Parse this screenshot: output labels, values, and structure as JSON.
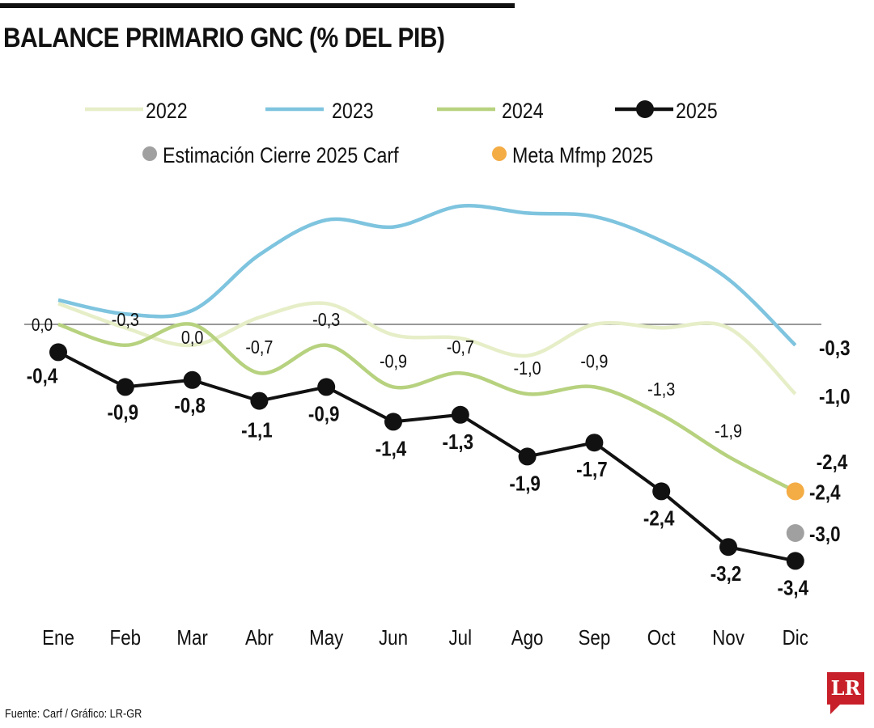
{
  "chart_data": {
    "type": "line",
    "title": "BALANCE PRIMARIO GNC (% DEL PIB)",
    "xlabel": "",
    "ylabel": "",
    "categories": [
      "Ene",
      "Feb",
      "Mar",
      "Abr",
      "May",
      "Jun",
      "Jul",
      "Ago",
      "Sep",
      "Oct",
      "Nov",
      "Dic"
    ],
    "ylim": [
      -3.8,
      1.9
    ],
    "grid": false,
    "zero_label": "0,0",
    "legend_placement": "top",
    "series": [
      {
        "name": "2022",
        "color": "#e6eec8",
        "values": [
          0.3,
          -0.05,
          -0.3,
          0.1,
          0.3,
          -0.15,
          -0.2,
          -0.45,
          0.0,
          -0.05,
          -0.05,
          -1.0
        ],
        "labels": [
          "",
          "",
          "",
          "",
          "",
          "",
          "",
          "",
          "",
          "",
          "",
          "-1,0"
        ]
      },
      {
        "name": "2023",
        "color": "#7ec4df",
        "values": [
          0.35,
          0.15,
          0.2,
          1.0,
          1.5,
          1.4,
          1.7,
          1.6,
          1.55,
          1.2,
          0.65,
          -0.3
        ],
        "labels": [
          "",
          "",
          "",
          "",
          "",
          "",
          "",
          "",
          "",
          "",
          "",
          "-0,3"
        ]
      },
      {
        "name": "2024",
        "color": "#b7d27f",
        "values": [
          0.0,
          -0.3,
          0.0,
          -0.7,
          -0.3,
          -0.9,
          -0.7,
          -1.0,
          -0.9,
          -1.3,
          -1.9,
          -2.4
        ],
        "labels": [
          "",
          "-0,3",
          "0,0",
          "-0,7",
          "-0,3",
          "-0,9",
          "-0,7",
          "-1,0",
          "-0,9",
          "-1,3",
          "-1,9",
          "-2,4"
        ]
      },
      {
        "name": "2025",
        "color": "#111111",
        "values": [
          -0.4,
          -0.9,
          -0.8,
          -1.1,
          -0.9,
          -1.4,
          -1.3,
          -1.9,
          -1.7,
          -2.4,
          -3.2,
          -3.4
        ],
        "labels": [
          "-0,4",
          "-0,9",
          "-0,8",
          "-1,1",
          "-0,9",
          "-1,4",
          "-1,3",
          "-1,9",
          "-1,7",
          "-2,4",
          "-3,2",
          "-3,4"
        ]
      }
    ],
    "points": [
      {
        "name": "Estimación Cierre 2025 Carf",
        "color": "#a0a0a0",
        "category": "Dic",
        "value": -3.0,
        "label": "-3,0"
      },
      {
        "name": "Meta Mfmp 2025",
        "color": "#f4ac45",
        "category": "Dic",
        "value": -2.4,
        "label": "-2,4"
      }
    ]
  },
  "source": "Fuente: Carf / Gráfico: LR-GR",
  "logo": "LR"
}
